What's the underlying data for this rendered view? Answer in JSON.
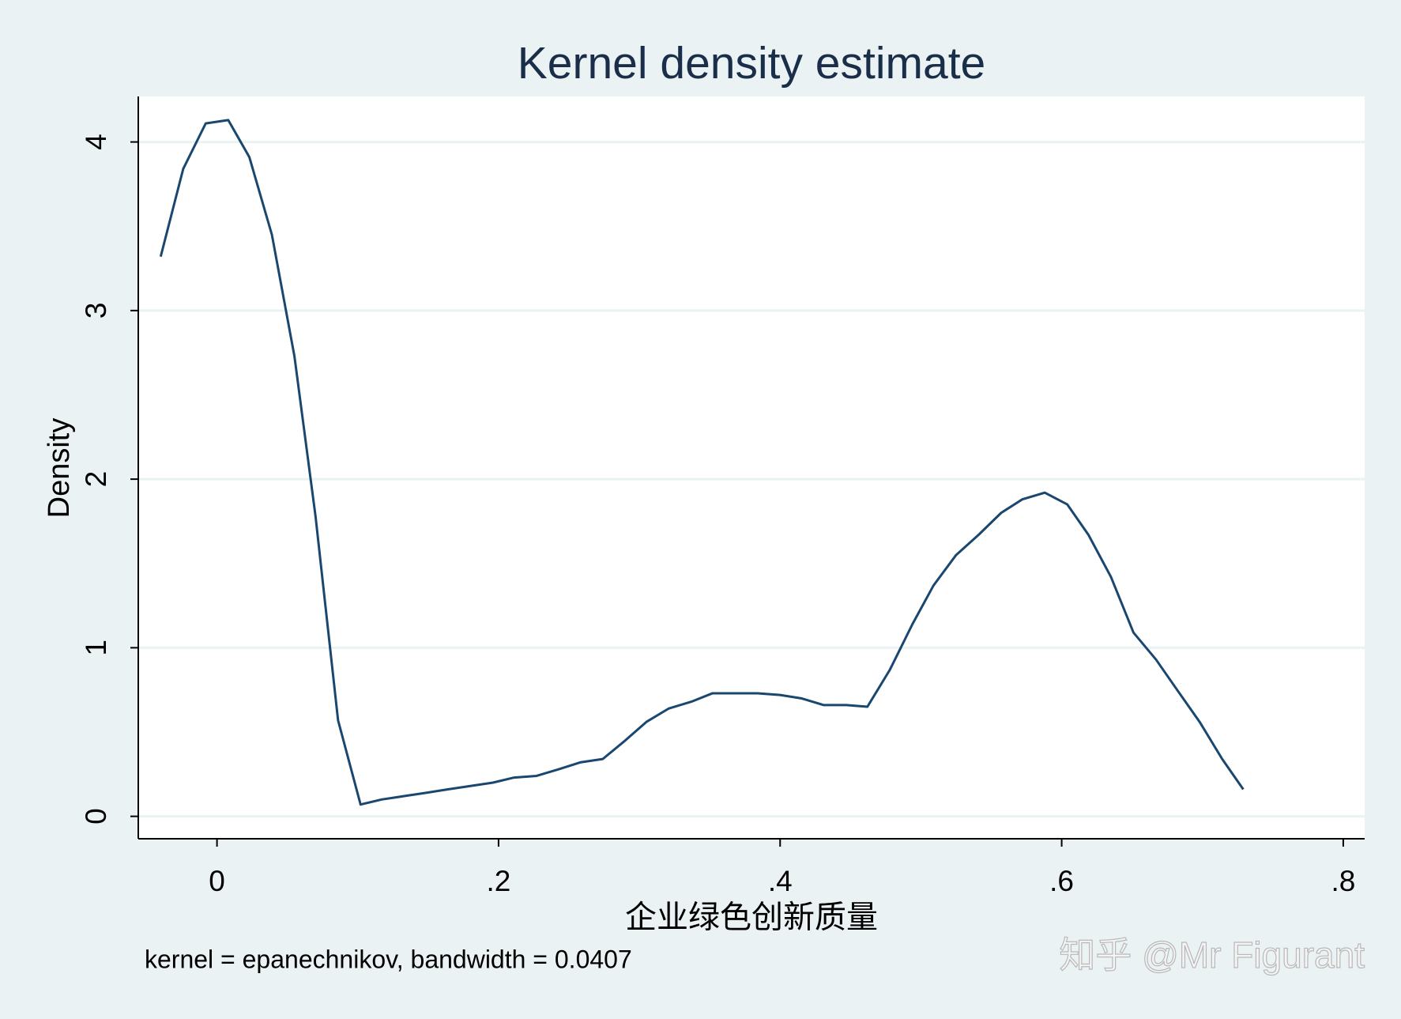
{
  "chart_data": {
    "type": "line",
    "title": "Kernel density estimate",
    "xlabel": "企业绿色创新质量",
    "ylabel": "Density",
    "note": "kernel = epanechnikov, bandwidth = 0.0407",
    "x": [
      -0.04,
      -0.024,
      -0.008,
      0.008,
      0.023,
      0.039,
      0.055,
      0.07,
      0.086,
      0.102,
      0.117,
      0.133,
      0.149,
      0.164,
      0.18,
      0.196,
      0.211,
      0.227,
      0.243,
      0.258,
      0.274,
      0.29,
      0.305,
      0.321,
      0.337,
      0.352,
      0.368,
      0.384,
      0.4,
      0.415,
      0.431,
      0.447,
      0.462,
      0.478,
      0.494,
      0.509,
      0.525,
      0.541,
      0.557,
      0.572,
      0.588,
      0.604,
      0.619,
      0.635,
      0.651,
      0.667,
      0.682,
      0.698,
      0.714,
      0.729
    ],
    "values": [
      3.32,
      3.84,
      4.11,
      4.13,
      3.91,
      3.45,
      2.73,
      1.78,
      0.57,
      0.07,
      0.1,
      0.12,
      0.14,
      0.16,
      0.18,
      0.2,
      0.23,
      0.24,
      0.28,
      0.32,
      0.34,
      0.45,
      0.56,
      0.64,
      0.68,
      0.73,
      0.73,
      0.73,
      0.72,
      0.7,
      0.66,
      0.66,
      0.65,
      0.87,
      1.14,
      1.37,
      1.55,
      1.67,
      1.8,
      1.88,
      1.92,
      1.85,
      1.67,
      1.42,
      1.09,
      0.93,
      0.75,
      0.56,
      0.34,
      0.16
    ],
    "color": "#1a476f",
    "xlim": [
      -0.0559,
      0.8152
    ],
    "ylim": [
      -0.133,
      4.27
    ],
    "xticks": [
      0,
      {
        "value": 0.2,
        "label": ".2"
      },
      {
        "value": 0.4,
        "label": ".4"
      },
      {
        "value": 0.6,
        "label": ".6"
      },
      {
        "value": 0.8,
        "label": ".8"
      }
    ],
    "yticks": [
      0,
      1,
      2,
      3,
      4
    ],
    "grid": true
  },
  "watermark": "知乎 @Mr Figurant"
}
